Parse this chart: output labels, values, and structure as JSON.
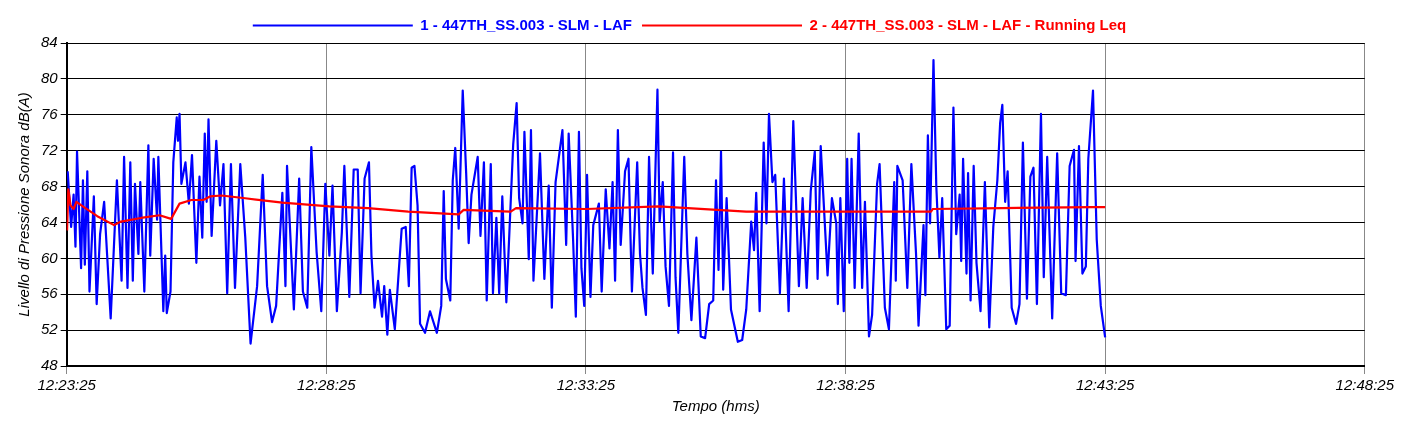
{
  "chart_data": {
    "type": "line",
    "xlabel": "Tempo (hms)",
    "ylabel": "Livello di Pressione Sonora dB(A)",
    "xlim": [
      12.390278,
      12.806944
    ],
    "xticks": [
      {
        "value": 12.390278,
        "label": "12:23:25"
      },
      {
        "value": 12.473611,
        "label": "12:28:25"
      },
      {
        "value": 12.556944,
        "label": "12:33:25"
      },
      {
        "value": 12.640278,
        "label": "12:38:25"
      },
      {
        "value": 12.723611,
        "label": "12:43:25"
      },
      {
        "value": 12.806944,
        "label": "12:48:25"
      }
    ],
    "ylim": [
      48,
      84
    ],
    "yticks": [
      48,
      52,
      56,
      60,
      64,
      68,
      72,
      76,
      80,
      84
    ],
    "grid": true,
    "legend": "top",
    "marker": "none",
    "line_style": "solid",
    "series": [
      {
        "name": "1 - 447TH_SS.003 - SLM - LAF",
        "color": "#0000ff",
        "x": [
          12.3906,
          12.3917,
          12.3925,
          12.3931,
          12.3936,
          12.3949,
          12.3955,
          12.3961,
          12.3969,
          12.3976,
          12.399,
          12.3999,
          12.401,
          12.4023,
          12.4044,
          12.4064,
          12.4079,
          12.4087,
          12.4098,
          12.4107,
          12.4115,
          12.4122,
          12.4133,
          12.4139,
          12.4152,
          12.4165,
          12.4171,
          12.4182,
          12.4193,
          12.4197,
          12.4213,
          12.4219,
          12.4224,
          12.4236,
          12.4245,
          12.4256,
          12.426,
          12.4265,
          12.4271,
          12.4284,
          12.4295,
          12.4305,
          12.4319,
          12.4329,
          12.4338,
          12.4346,
          12.4352,
          12.4358,
          12.4368,
          12.4383,
          12.4395,
          12.4406,
          12.4418,
          12.443,
          12.4443,
          12.446,
          12.4476,
          12.4493,
          12.4514,
          12.4532,
          12.4546,
          12.4562,
          12.4575,
          12.4595,
          12.4605,
          12.461,
          12.4632,
          12.4649,
          12.4661,
          12.4675,
          12.4688,
          12.4705,
          12.472,
          12.4733,
          12.4746,
          12.4756,
          12.477,
          12.4786,
          12.4794,
          12.481,
          12.4824,
          12.4837,
          12.4846,
          12.4859,
          12.4873,
          12.4881,
          12.4891,
          12.4902,
          12.4915,
          12.4922,
          12.4932,
          12.494,
          12.4956,
          12.4978,
          12.4991,
          12.5001,
          12.501,
          12.5019,
          12.5029,
          12.5037,
          12.5053,
          12.5069,
          12.5091,
          12.5105,
          12.5113,
          12.512,
          12.5134,
          12.5142,
          12.515,
          12.5161,
          12.5174,
          12.5185,
          12.5193,
          12.5202,
          12.5222,
          12.5231,
          12.5242,
          12.5251,
          12.5264,
          12.5271,
          12.5282,
          12.5291,
          12.5301,
          12.5314,
          12.5336,
          12.5347,
          12.5355,
          12.5366,
          12.5372,
          12.5386,
          12.5393,
          12.5401,
          12.5422,
          12.5436,
          12.545,
          12.546,
          12.5472,
          12.5494,
          12.5506,
          12.5514,
          12.5528,
          12.5537,
          12.5547,
          12.5555,
          12.5564,
          12.5573,
          12.5584,
          12.5593,
          12.5611,
          12.562,
          12.5633,
          12.5645,
          12.5655,
          12.5663,
          12.5672,
          12.5681,
          12.5695,
          12.5706,
          12.5717,
          12.5734,
          12.5743,
          12.5751,
          12.5762,
          12.5772,
          12.5784,
          12.5799,
          12.5806,
          12.5816,
          12.5825,
          12.5836,
          12.5849,
          12.5857,
          12.5866,
          12.5885,
          12.5895,
          12.5908,
          12.5924,
          12.5938,
          12.5952,
          12.5965,
          12.5978,
          12.5987,
          12.5995,
          12.6003,
          12.601,
          12.6021,
          12.6035,
          12.6057,
          12.6071,
          12.6084,
          12.61,
          12.6109,
          12.6116,
          12.6127,
          12.614,
          12.6149,
          12.6157,
          12.6168,
          12.6177,
          12.6192,
          12.6205,
          12.622,
          12.6235,
          12.6253,
          12.6265,
          12.6278,
          12.6291,
          12.6304,
          12.6313,
          12.6323,
          12.6345,
          12.6359,
          12.6373,
          12.6378,
          12.6386,
          12.6397,
          12.6408,
          12.6415,
          12.6422,
          12.6432,
          12.6445,
          12.6456,
          12.6465,
          12.6478,
          12.6488,
          12.6504,
          12.6512,
          12.6529,
          12.6542,
          12.6559,
          12.6564,
          12.6569,
          12.6586,
          12.6601,
          12.6614,
          12.6629,
          12.6637,
          12.6653,
          12.6659,
          12.6667,
          12.6674,
          12.6685,
          12.6694,
          12.6704,
          12.6713,
          12.6726,
          12.6737,
          12.6749,
          12.6758,
          12.6769,
          12.6774,
          12.678,
          12.6791,
          12.6796,
          12.6804,
          12.6814,
          12.6823,
          12.6836,
          12.685,
          12.6864,
          12.6877,
          12.689,
          12.6899,
          12.6906,
          12.6915,
          12.6923,
          12.6936,
          12.695,
          12.6961,
          12.6972,
          12.6985,
          12.6996,
          12.7006,
          12.7017,
          12.703,
          12.7039,
          12.705,
          12.7066,
          12.7082,
          12.7095,
          12.711,
          12.7122,
          12.7136,
          12.7141,
          12.7152,
          12.7163,
          12.7174,
          12.7182,
          12.7197,
          12.7209,
          12.7222,
          12.7236
        ],
        "values": [
          69.7,
          63.5,
          67.1,
          61.3,
          71.9,
          58.9,
          68.7,
          59.3,
          69.7,
          56.3,
          66.9,
          54.9,
          62.7,
          66.3,
          53.3,
          68.7,
          57.5,
          71.3,
          56.7,
          70.7,
          57.5,
          68.3,
          60.5,
          68.5,
          56.3,
          72.6,
          60.3,
          71.1,
          64.3,
          71.3,
          54.1,
          60.3,
          53.9,
          56.3,
          70.7,
          75.7,
          73.1,
          76.1,
          68.3,
          70.7,
          66.1,
          71.5,
          59.5,
          69.1,
          62.3,
          73.9,
          66.3,
          75.5,
          62.5,
          73.1,
          65.9,
          70.5,
          56.1,
          70.5,
          56.7,
          70.5,
          62.3,
          50.5,
          56.9,
          69.3,
          56.9,
          52.9,
          54.7,
          67.3,
          56.9,
          70.3,
          54.3,
          68.9,
          56.3,
          54.5,
          72.4,
          60.7,
          54.1,
          68.3,
          60.3,
          68.1,
          54.1,
          62.9,
          70.3,
          55.7,
          69.9,
          69.9,
          56.1,
          68.9,
          70.7,
          60.3,
          54.5,
          57.5,
          53.5,
          56.9,
          51.5,
          56.5,
          52.1,
          63.3,
          63.5,
          56.9,
          70.1,
          70.3,
          65.9,
          52.7,
          51.7,
          54.1,
          51.7,
          54.7,
          67.5,
          57.7,
          55.3,
          68.7,
          72.3,
          63.3,
          78.7,
          69.5,
          61.7,
          67.1,
          71.3,
          62.5,
          70.7,
          55.3,
          70.5,
          56.1,
          64.5,
          56.1,
          66.9,
          55.1,
          72.7,
          77.3,
          66.7,
          63.9,
          74.1,
          59.9,
          74.3,
          57.5,
          71.7,
          57.7,
          68.1,
          54.5,
          68.5,
          74.3,
          61.5,
          73.9,
          62.3,
          53.5,
          74.1,
          58.9,
          54.7,
          69.3,
          55.7,
          63.7,
          66.1,
          56.3,
          67.7,
          61.1,
          68.5,
          57.5,
          74.3,
          61.5,
          69.7,
          71.1,
          56.3,
          70.7,
          60.5,
          56.7,
          53.7,
          71.3,
          58.3,
          78.8,
          64.1,
          68.5,
          59.1,
          54.7,
          71.8,
          57.9,
          51.7,
          71.3,
          60.5,
          53.1,
          62.3,
          51.3,
          51.1,
          54.9,
          55.3,
          68.7,
          58.7,
          71.9,
          56.5,
          66.7,
          54.3,
          50.7,
          50.9,
          54.3,
          64.1,
          60.9,
          67.3,
          54.1,
          72.9,
          63.9,
          76.1,
          68.5,
          69.3,
          56.1,
          68.9,
          54.1,
          75.3,
          56.9,
          66.7,
          56.7,
          67.5,
          71.9,
          57.7,
          72.5,
          58.1,
          66.7,
          63.9,
          54.9,
          66.7,
          54.1,
          71.1,
          59.5,
          71.1,
          56.7,
          73.9,
          56.7,
          66.3,
          51.3,
          53.7,
          68.3,
          70.5,
          54.5,
          52.1,
          68.5,
          57.5,
          70.3,
          68.7,
          56.7,
          70.5,
          60.5,
          52.5,
          63.7,
          55.9,
          73.7,
          63.9,
          82.1,
          68.1,
          60.1,
          66.7,
          52.1,
          52.5,
          76.8,
          62.7,
          67.1,
          59.7,
          71.1,
          58.3,
          69.5,
          55.3,
          70.3,
          59.5,
          54.1,
          68.5,
          52.3,
          63.5,
          68.7,
          75.1,
          77.1,
          66.3,
          69.7,
          54.5,
          52.7,
          54.9,
          72.9,
          55.5,
          69.1,
          70.1,
          54.9,
          76.1,
          57.9,
          71.3,
          53.3,
          71.7,
          56.1,
          55.9,
          70.3,
          72.1,
          59.7,
          72.5,
          58.3,
          59.1,
          71.1,
          78.7,
          62.1,
          54.7,
          51.2
        ]
      },
      {
        "name": "2 - 447TH_SS.003 - SLM - LAF - Running Leq",
        "color": "#ff0000",
        "x": [
          12.3904,
          12.3908,
          12.3915,
          12.3925,
          12.3934,
          12.3958,
          12.4001,
          12.4055,
          12.4077,
          12.4141,
          12.4201,
          12.4238,
          12.4265,
          12.4303,
          12.4341,
          12.4363,
          12.44,
          12.4476,
          12.4595,
          12.4746,
          12.487,
          12.4999,
          12.5161,
          12.5177,
          12.5328,
          12.5345,
          12.5571,
          12.5803,
          12.6084,
          12.6397,
          12.6677,
          12.6683,
          12.6904,
          12.7195,
          12.7236
        ],
        "values": [
          63.1,
          67.7,
          65.9,
          65.5,
          66.3,
          65.7,
          64.7,
          63.7,
          64.1,
          64.5,
          64.8,
          64.4,
          66.1,
          66.5,
          66.5,
          66.9,
          67.0,
          66.7,
          66.2,
          65.8,
          65.6,
          65.2,
          64.9,
          65.4,
          65.2,
          65.6,
          65.5,
          65.8,
          65.2,
          65.2,
          65.2,
          65.5,
          65.6,
          65.7,
          65.7
        ]
      }
    ]
  }
}
